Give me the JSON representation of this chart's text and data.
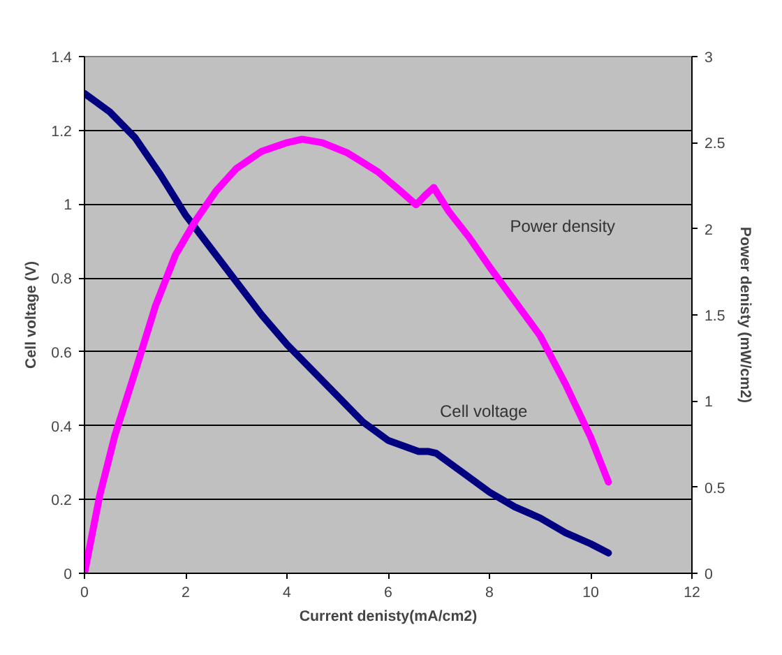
{
  "chart_data": {
    "type": "line",
    "xlabel": "Current denisty(mA/cm2)",
    "ylabel": "Cell voltage (V)",
    "y2label": "Power denisty (mW/cm2)",
    "xlim": [
      0,
      12
    ],
    "xticks": [
      0,
      2,
      4,
      6,
      8,
      10,
      12
    ],
    "ylim": [
      0,
      1.4
    ],
    "yticks": [
      0,
      0.2,
      0.4,
      0.6,
      0.8,
      1,
      1.2,
      1.4
    ],
    "y2lim": [
      0,
      3
    ],
    "y2ticks": [
      0,
      0.5,
      1,
      1.5,
      2,
      2.5,
      3
    ],
    "grid": "y",
    "legend": false,
    "marker": "none",
    "line_style": "solid",
    "series": [
      {
        "name": "Cell voltage",
        "color": "#000080",
        "x": [
          0,
          0.5,
          1,
          1.5,
          2,
          2.5,
          3,
          3.5,
          4,
          4.5,
          5,
          5.5,
          6,
          6.6,
          6.8,
          6.95,
          7.5,
          8,
          8.5,
          9,
          9.5,
          10,
          10.35
        ],
        "values": [
          1.3,
          1.25,
          1.18,
          1.08,
          0.97,
          0.88,
          0.79,
          0.7,
          0.62,
          0.55,
          0.48,
          0.41,
          0.36,
          0.33,
          0.33,
          0.325,
          0.27,
          0.22,
          0.18,
          0.15,
          0.11,
          0.08,
          0.055
        ]
      },
      {
        "name": "Power density",
        "color": "#ff00ff",
        "axis": "y2",
        "x": [
          0,
          0.3,
          0.6,
          1,
          1.4,
          1.8,
          2.2,
          2.6,
          3,
          3.5,
          4,
          4.3,
          4.7,
          5.2,
          5.8,
          6.2,
          6.55,
          6.75,
          6.9,
          7.2,
          7.6,
          8,
          8.5,
          9,
          9.5,
          10,
          10.35
        ],
        "values": [
          0,
          0.45,
          0.8,
          1.17,
          1.55,
          1.85,
          2.05,
          2.22,
          2.35,
          2.45,
          2.5,
          2.52,
          2.5,
          2.44,
          2.33,
          2.23,
          2.14,
          2.2,
          2.24,
          2.1,
          1.95,
          1.78,
          1.58,
          1.38,
          1.1,
          0.79,
          0.53
        ]
      }
    ]
  }
}
